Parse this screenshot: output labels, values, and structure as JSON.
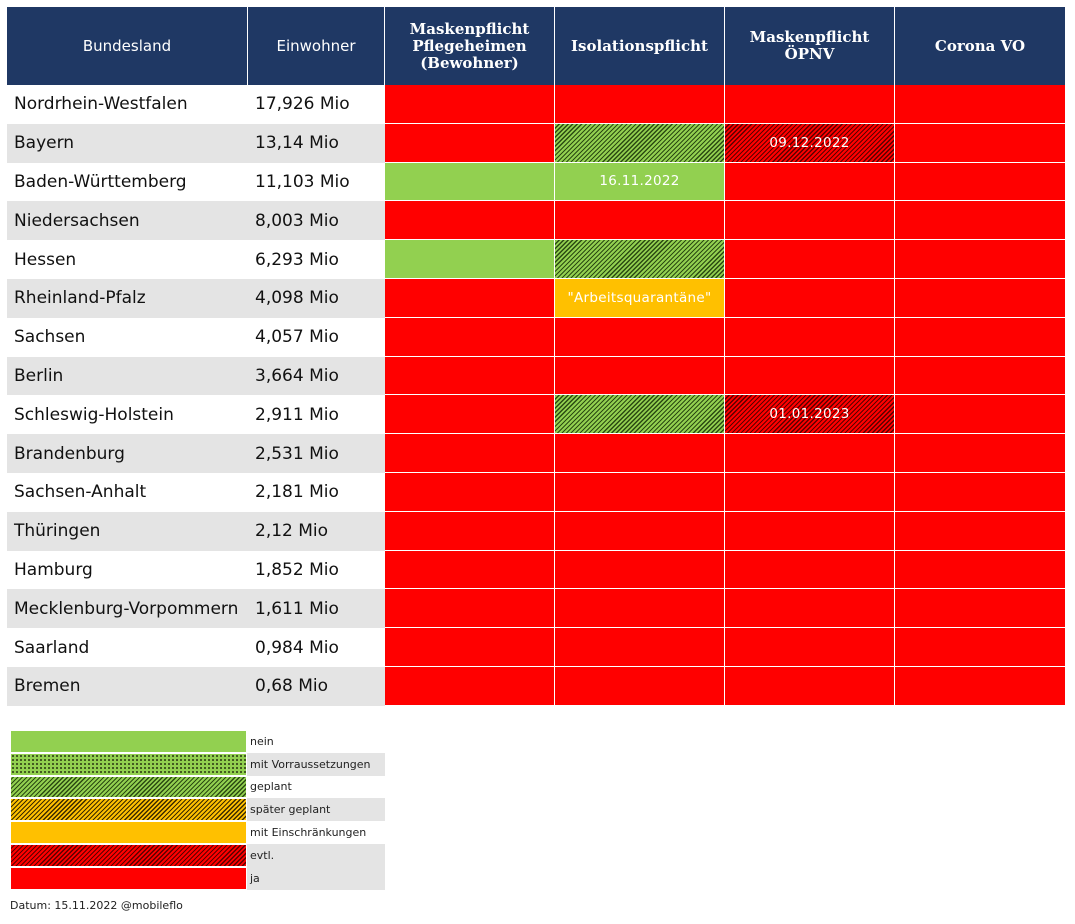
{
  "table": {
    "header": [
      "Bundesland",
      "Einwohner",
      "Maskenpflicht\nPflegeheimen\n(Bewohner)",
      "Isolationspflicht",
      "Maskenpflicht\nÖPNV",
      "Corona VO"
    ],
    "rows": [
      {
        "name": "Nordrhein-Westfalen",
        "population": "17,926 Mio",
        "cells": [
          {
            "status": "ja"
          },
          {
            "status": "ja"
          },
          {
            "status": "ja"
          },
          {
            "status": "ja"
          }
        ]
      },
      {
        "name": "Bayern",
        "population": "13,14 Mio",
        "cells": [
          {
            "status": "ja"
          },
          {
            "status": "geplant"
          },
          {
            "status": "evtl.",
            "text": "09.12.2022"
          },
          {
            "status": "ja"
          }
        ]
      },
      {
        "name": "Baden-Württemberg",
        "population": "11,103 Mio",
        "cells": [
          {
            "status": "nein"
          },
          {
            "status": "nein",
            "text": "16.11.2022"
          },
          {
            "status": "ja"
          },
          {
            "status": "ja"
          }
        ]
      },
      {
        "name": "Niedersachsen",
        "population": "8,003 Mio",
        "cells": [
          {
            "status": "ja"
          },
          {
            "status": "ja"
          },
          {
            "status": "ja"
          },
          {
            "status": "ja"
          }
        ]
      },
      {
        "name": "Hessen",
        "population": "6,293 Mio",
        "cells": [
          {
            "status": "nein"
          },
          {
            "status": "geplant"
          },
          {
            "status": "ja"
          },
          {
            "status": "ja"
          }
        ]
      },
      {
        "name": "Rheinland-Pfalz",
        "population": "4,098 Mio",
        "cells": [
          {
            "status": "ja"
          },
          {
            "status": "mit Einschränkungen",
            "text": "\"Arbeitsquarantäne\""
          },
          {
            "status": "ja"
          },
          {
            "status": "ja"
          }
        ]
      },
      {
        "name": "Sachsen",
        "population": "4,057 Mio",
        "cells": [
          {
            "status": "ja"
          },
          {
            "status": "ja"
          },
          {
            "status": "ja"
          },
          {
            "status": "ja"
          }
        ]
      },
      {
        "name": "Berlin",
        "population": "3,664 Mio",
        "cells": [
          {
            "status": "ja"
          },
          {
            "status": "ja"
          },
          {
            "status": "ja"
          },
          {
            "status": "ja"
          }
        ]
      },
      {
        "name": "Schleswig-Holstein",
        "population": "2,911 Mio",
        "cells": [
          {
            "status": "ja"
          },
          {
            "status": "geplant"
          },
          {
            "status": "evtl.",
            "text": "01.01.2023"
          },
          {
            "status": "ja"
          }
        ]
      },
      {
        "name": "Brandenburg",
        "population": "2,531 Mio",
        "cells": [
          {
            "status": "ja"
          },
          {
            "status": "ja"
          },
          {
            "status": "ja"
          },
          {
            "status": "ja"
          }
        ]
      },
      {
        "name": "Sachsen-Anhalt",
        "population": "2,181 Mio",
        "cells": [
          {
            "status": "ja"
          },
          {
            "status": "ja"
          },
          {
            "status": "ja"
          },
          {
            "status": "ja"
          }
        ]
      },
      {
        "name": "Thüringen",
        "population": "2,12 Mio",
        "cells": [
          {
            "status": "ja"
          },
          {
            "status": "ja"
          },
          {
            "status": "ja"
          },
          {
            "status": "ja"
          }
        ]
      },
      {
        "name": "Hamburg",
        "population": "1,852 Mio",
        "cells": [
          {
            "status": "ja"
          },
          {
            "status": "ja"
          },
          {
            "status": "ja"
          },
          {
            "status": "ja"
          }
        ]
      },
      {
        "name": "Mecklenburg-Vorpommern",
        "population": "1,611 Mio",
        "cells": [
          {
            "status": "ja"
          },
          {
            "status": "ja"
          },
          {
            "status": "ja"
          },
          {
            "status": "ja"
          }
        ]
      },
      {
        "name": "Saarland",
        "population": "0,984 Mio",
        "cells": [
          {
            "status": "ja"
          },
          {
            "status": "ja"
          },
          {
            "status": "ja"
          },
          {
            "status": "ja"
          }
        ]
      },
      {
        "name": "Bremen",
        "population": "0,68 Mio",
        "cells": [
          {
            "status": "ja"
          },
          {
            "status": "ja"
          },
          {
            "status": "ja"
          },
          {
            "status": "ja"
          }
        ]
      }
    ]
  },
  "legend": [
    "nein",
    "mit Vorraussetzungen",
    "geplant",
    "später geplant",
    "mit Einschränkungen",
    "evtl.",
    "ja"
  ],
  "footer": "Datum: 15.11.2022 @mobileflo"
}
